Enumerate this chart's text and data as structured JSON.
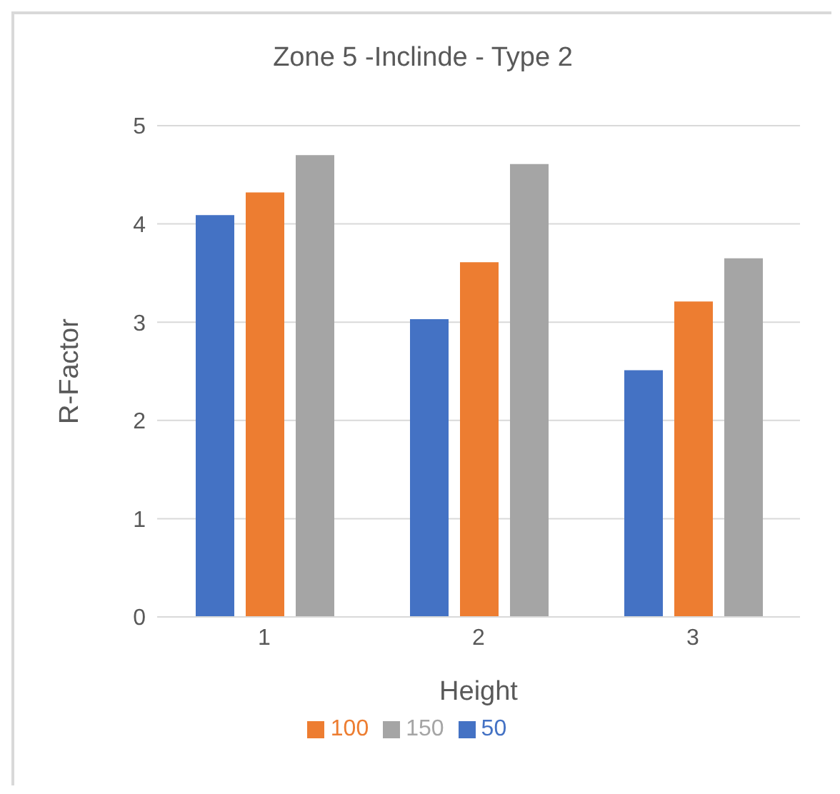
{
  "chart_data": {
    "type": "bar",
    "title": "Zone 5 -Inclinde - Type 2",
    "xlabel": "Height",
    "ylabel": "R-Factor",
    "categories": [
      "1",
      "2",
      "3"
    ],
    "series": [
      {
        "name": "50",
        "color": "#4472c4",
        "values": [
          4.09,
          3.03,
          2.51
        ]
      },
      {
        "name": "100",
        "color": "#ed7d31",
        "values": [
          4.32,
          3.61,
          3.21
        ]
      },
      {
        "name": "150",
        "color": "#a5a5a5",
        "values": [
          4.7,
          4.61,
          3.65
        ]
      }
    ],
    "ylim": [
      0,
      5
    ],
    "yticks": [
      0,
      1,
      2,
      3,
      4,
      5
    ],
    "grid": "y",
    "legend": "bottom"
  }
}
